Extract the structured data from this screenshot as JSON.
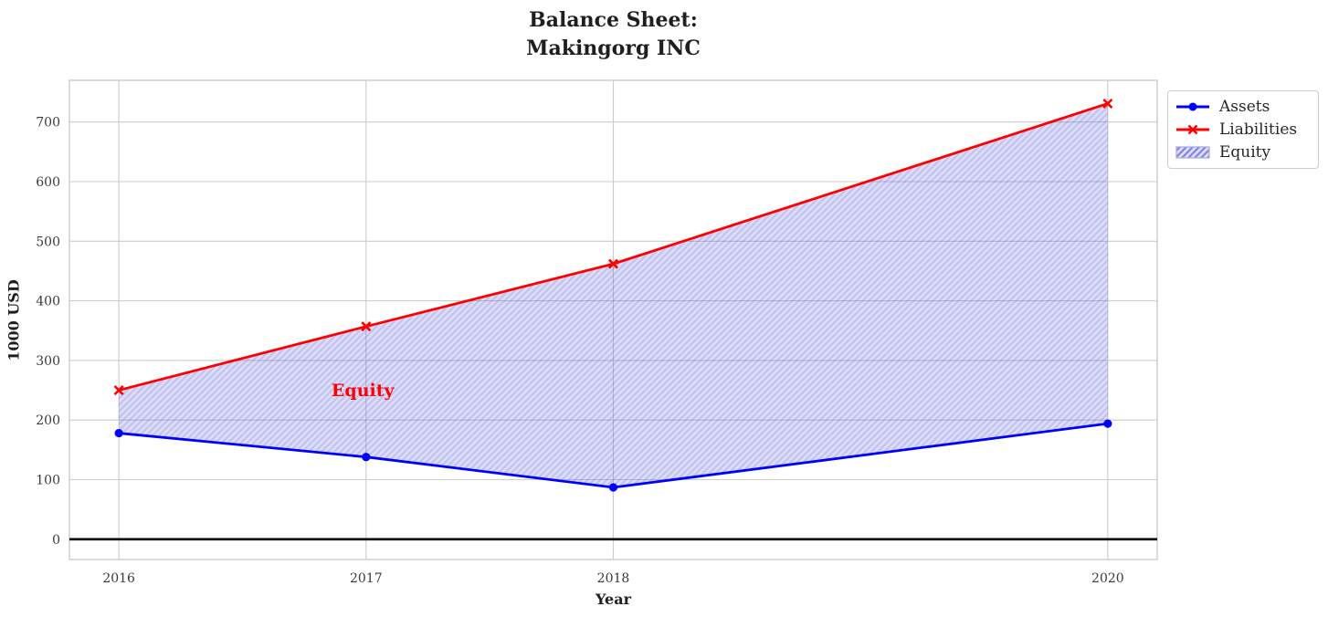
{
  "chart": {
    "title_lines": [
      "Balance Sheet:",
      "Makingorg INC"
    ],
    "ylabel": "1000 USD",
    "xlabel": "Year"
  },
  "chart_data": {
    "type": "line",
    "x": [
      2016,
      2017,
      2018,
      2020
    ],
    "series": [
      {
        "name": "Assets",
        "values": [
          178,
          138,
          87,
          194
        ],
        "color": "#0000ff",
        "marker": "circle"
      },
      {
        "name": "Liabilities",
        "values": [
          250,
          357,
          462,
          731
        ],
        "color": "#ff0000",
        "marker": "x"
      }
    ],
    "fill_between": {
      "label": "Equity",
      "between": [
        "Assets",
        "Liabilities"
      ],
      "hatch": "/",
      "base_color": "rgba(80,80,220,0.19)",
      "hatch_color": "rgba(80,80,220,0.18)",
      "legend_hatch_color": "rgba(70,70,215,0.60)",
      "legend_edge_color": "#a9a9e2"
    },
    "annotation": {
      "text": "Equity",
      "x": 2016.86,
      "y": 250,
      "color": "#ff0000"
    },
    "x_ticks": [
      "2016",
      "2017",
      "2018",
      "2020"
    ],
    "x_tick_values": [
      2016,
      2017,
      2018,
      2020
    ],
    "y_ticks": [
      "0",
      "100",
      "200",
      "300",
      "400",
      "500",
      "600",
      "700"
    ],
    "y_tick_values": [
      0,
      100,
      200,
      300,
      400,
      500,
      600,
      700
    ],
    "xlim": [
      2015.8,
      2020.2
    ],
    "ylim": [
      -34,
      770
    ],
    "grid": true,
    "grid_color": "#cccccc",
    "spine_color": "#cccccc",
    "zero_line": {
      "y": 0,
      "color": "#000000"
    },
    "legend_position": "outside-upper-right"
  }
}
